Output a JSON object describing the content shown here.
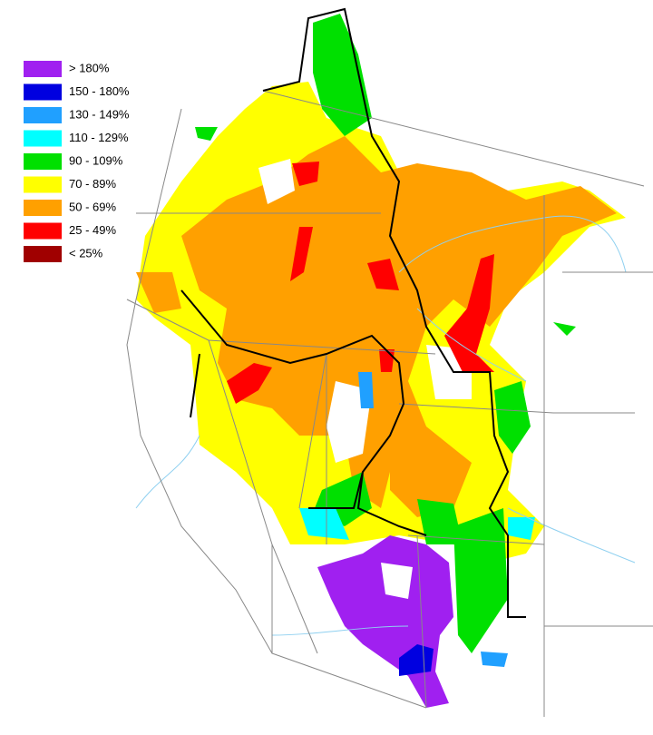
{
  "legend": {
    "items": [
      {
        "label": "> 180%",
        "color": "#a020f0"
      },
      {
        "label": "150 - 180%",
        "color": "#0000e0"
      },
      {
        "label": "130 - 149%",
        "color": "#20a0ff"
      },
      {
        "label": "110 - 129%",
        "color": "#00ffff"
      },
      {
        "label": "90 - 109%",
        "color": "#00e000"
      },
      {
        "label": "70 - 89%",
        "color": "#ffff00"
      },
      {
        "label": "50 - 69%",
        "color": "#ffa000"
      },
      {
        "label": "25 - 49%",
        "color": "#ff0000"
      },
      {
        "label": "< 25%",
        "color": "#a00000"
      }
    ]
  }
}
